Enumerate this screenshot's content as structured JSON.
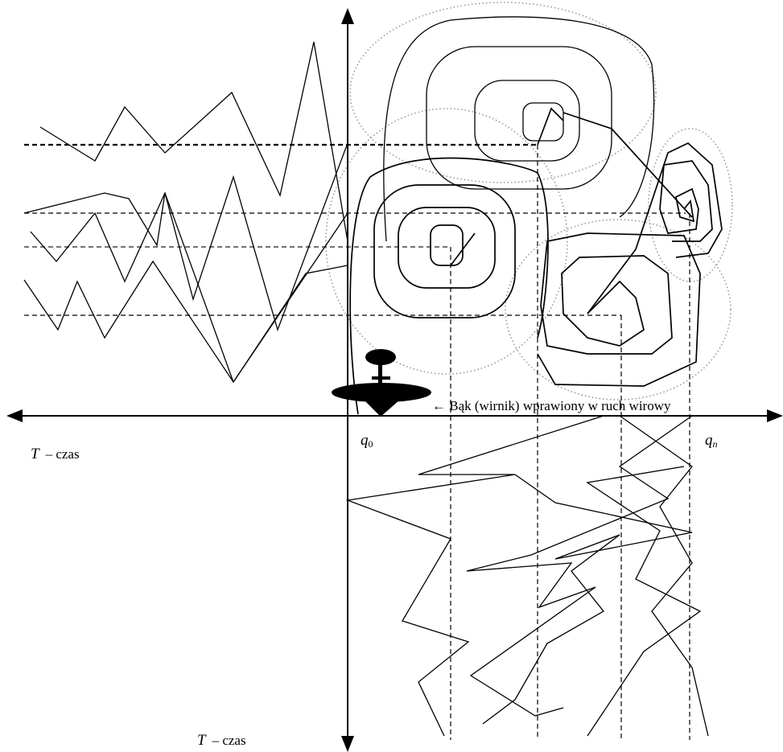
{
  "labels": {
    "annotation": "← Bąk (wirnik) wprawiony w ruch wirowy",
    "time_horizontal": {
      "symbol": "T",
      "text": "– czas"
    },
    "time_vertical": {
      "symbol": "T",
      "text": "– czas"
    },
    "q_start": {
      "symbol": "q",
      "subscript": "0"
    },
    "q_end": {
      "symbol": "q",
      "subscript": "n"
    }
  }
}
